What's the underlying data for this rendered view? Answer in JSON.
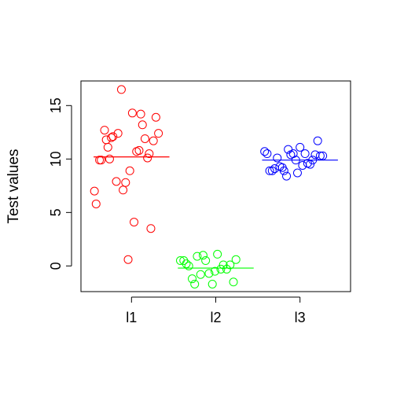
{
  "chart_data": {
    "type": "scatter",
    "title": "",
    "xlabel": "",
    "ylabel": "Test values",
    "categories": [
      "l1",
      "l2",
      "l3"
    ],
    "yticks": [
      0,
      5,
      10,
      15
    ],
    "ylim": [
      -2.4,
      17.3
    ],
    "xlim": [
      0.4,
      3.6
    ],
    "grid": false,
    "legend": "none",
    "series": [
      {
        "category": "l1",
        "color": "#ff0000",
        "mean": 10.2,
        "points": [
          [
            0.56,
            7.0
          ],
          [
            0.58,
            5.8
          ],
          [
            0.62,
            9.9
          ],
          [
            0.64,
            9.9
          ],
          [
            0.68,
            12.7
          ],
          [
            0.7,
            11.8
          ],
          [
            0.72,
            11.1
          ],
          [
            0.74,
            10.0
          ],
          [
            0.76,
            12.0
          ],
          [
            0.78,
            12.1
          ],
          [
            0.82,
            7.9
          ],
          [
            0.84,
            12.4
          ],
          [
            0.88,
            16.5
          ],
          [
            0.9,
            7.1
          ],
          [
            0.93,
            7.8
          ],
          [
            0.96,
            0.6
          ],
          [
            0.98,
            8.9
          ],
          [
            1.01,
            14.3
          ],
          [
            1.03,
            4.1
          ],
          [
            1.06,
            10.7
          ],
          [
            1.09,
            10.8
          ],
          [
            1.11,
            14.2
          ],
          [
            1.13,
            13.2
          ],
          [
            1.16,
            11.9
          ],
          [
            1.19,
            10.1
          ],
          [
            1.21,
            10.5
          ],
          [
            1.23,
            3.5
          ],
          [
            1.26,
            11.7
          ],
          [
            1.29,
            13.9
          ],
          [
            1.32,
            12.4
          ]
        ]
      },
      {
        "category": "l2",
        "color": "#00ff00",
        "mean": -0.2,
        "points": [
          [
            1.58,
            0.5
          ],
          [
            1.62,
            0.5
          ],
          [
            1.65,
            0.2
          ],
          [
            1.68,
            0.0
          ],
          [
            1.72,
            -1.2
          ],
          [
            1.75,
            -1.7
          ],
          [
            1.78,
            0.9
          ],
          [
            1.82,
            -0.8
          ],
          [
            1.85,
            1.0
          ],
          [
            1.88,
            0.5
          ],
          [
            1.92,
            -0.7
          ],
          [
            1.96,
            -1.7
          ],
          [
            1.99,
            -0.5
          ],
          [
            2.02,
            1.1
          ],
          [
            2.06,
            -0.3
          ],
          [
            2.09,
            0.1
          ],
          [
            2.13,
            -0.3
          ],
          [
            2.17,
            0.1
          ],
          [
            2.21,
            -1.5
          ],
          [
            2.24,
            0.6
          ]
        ]
      },
      {
        "category": "l3",
        "color": "#0000ff",
        "mean": 9.9,
        "points": [
          [
            2.58,
            10.7
          ],
          [
            2.61,
            10.5
          ],
          [
            2.64,
            8.9
          ],
          [
            2.67,
            8.9
          ],
          [
            2.7,
            9.1
          ],
          [
            2.73,
            10.1
          ],
          [
            2.76,
            9.3
          ],
          [
            2.79,
            9.2
          ],
          [
            2.81,
            8.9
          ],
          [
            2.84,
            8.4
          ],
          [
            2.86,
            10.9
          ],
          [
            2.89,
            10.4
          ],
          [
            2.92,
            10.5
          ],
          [
            2.95,
            9.9
          ],
          [
            2.97,
            8.7
          ],
          [
            3.0,
            11.1
          ],
          [
            3.03,
            9.4
          ],
          [
            3.06,
            10.5
          ],
          [
            3.09,
            9.6
          ],
          [
            3.12,
            9.5
          ],
          [
            3.15,
            9.9
          ],
          [
            3.18,
            10.4
          ],
          [
            3.21,
            11.7
          ],
          [
            3.24,
            10.3
          ],
          [
            3.27,
            10.3
          ]
        ]
      }
    ]
  }
}
